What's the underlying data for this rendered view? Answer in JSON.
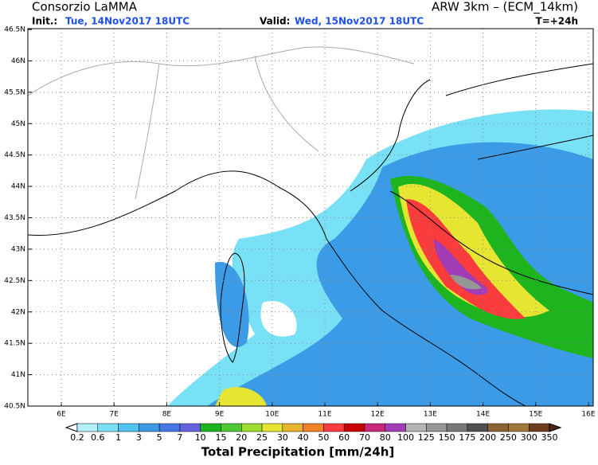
{
  "header": {
    "title": "Consorzio LaMMA",
    "model": "ARW 3km – (ECM_14km)",
    "init_label": "Init.:",
    "init": "Tue, 14Nov2017 18UTC",
    "valid_label": "Valid:",
    "valid": "Wed, 15Nov2017 18UTC",
    "lead": "T=+24h"
  },
  "map": {
    "lat_labels": [
      "46.5N",
      "46N",
      "45.5N",
      "45N",
      "44.5N",
      "44N",
      "43.5N",
      "43N",
      "42.5N",
      "42N",
      "41.5N",
      "41N",
      "40.5N"
    ],
    "lon_labels": [
      "6E",
      "7E",
      "8E",
      "9E",
      "10E",
      "11E",
      "12E",
      "13E",
      "14E",
      "15E",
      "16E"
    ]
  },
  "colorbar": {
    "labels": [
      "0.2",
      "0.6",
      "1",
      "3",
      "5",
      "7",
      "10",
      "15",
      "20",
      "25",
      "30",
      "40",
      "50",
      "60",
      "70",
      "80",
      "100",
      "125",
      "150",
      "175",
      "200",
      "250",
      "300",
      "350"
    ],
    "colors": [
      "#ffffff",
      "#b4f0fa",
      "#78e1f5",
      "#50c3f0",
      "#3c9be6",
      "#4678e6",
      "#6464dc",
      "#1eb41e",
      "#50c832",
      "#a0dc32",
      "#e6e632",
      "#e6b42d",
      "#f08228",
      "#fa3c3c",
      "#c80000",
      "#c8287a",
      "#a03cb4",
      "#b4b4b4",
      "#969696",
      "#787878",
      "#505050",
      "#8c6432",
      "#a0783c",
      "#6e3c1e",
      "#4b2814"
    ],
    "title": "Total Precipitation [mm/24h]"
  }
}
